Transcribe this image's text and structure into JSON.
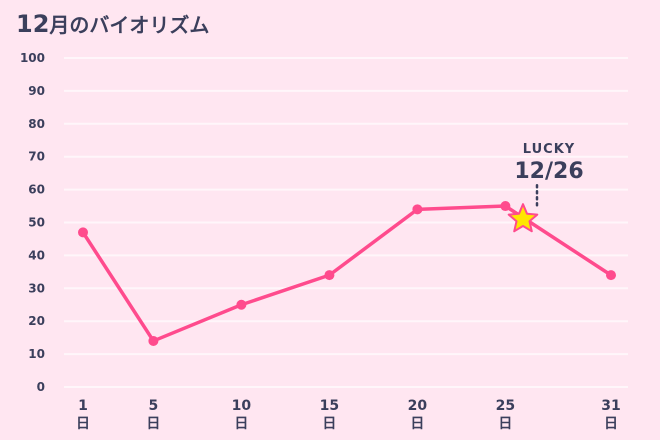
{
  "title": {
    "month": "12",
    "text": "月のバイオリズム"
  },
  "colors": {
    "background": "#ffe6f1",
    "grid": "#fff6fa",
    "line": "#ff4b8d",
    "star": "#ffe600",
    "text": "#3b3f5c"
  },
  "chart_data": {
    "type": "line",
    "title": "12月のバイオリズム",
    "x_tick_labels": [
      {
        "x": 1,
        "num": "1",
        "unit": "日"
      },
      {
        "x": 5,
        "num": "5",
        "unit": "日"
      },
      {
        "x": 10,
        "num": "10",
        "unit": "日"
      },
      {
        "x": 15,
        "num": "15",
        "unit": "日"
      },
      {
        "x": 20,
        "num": "20",
        "unit": "日"
      },
      {
        "x": 25,
        "num": "25",
        "unit": "日"
      },
      {
        "x": 31,
        "num": "31",
        "unit": "日"
      }
    ],
    "y_ticks": [
      0,
      10,
      20,
      30,
      40,
      50,
      60,
      70,
      80,
      90,
      100
    ],
    "ylim": [
      0,
      100
    ],
    "xlim": [
      1,
      31
    ],
    "grid": true,
    "series": [
      {
        "points": [
          {
            "x": 1,
            "y": 47
          },
          {
            "x": 5,
            "y": 14
          },
          {
            "x": 10,
            "y": 25
          },
          {
            "x": 15,
            "y": 34
          },
          {
            "x": 20,
            "y": 54
          },
          {
            "x": 25,
            "y": 55
          },
          {
            "x": 31,
            "y": 34
          }
        ]
      }
    ],
    "annotation": {
      "x": 26,
      "y": 51,
      "label": "LUCKY",
      "date": "12/26",
      "marker": "star-icon"
    }
  }
}
